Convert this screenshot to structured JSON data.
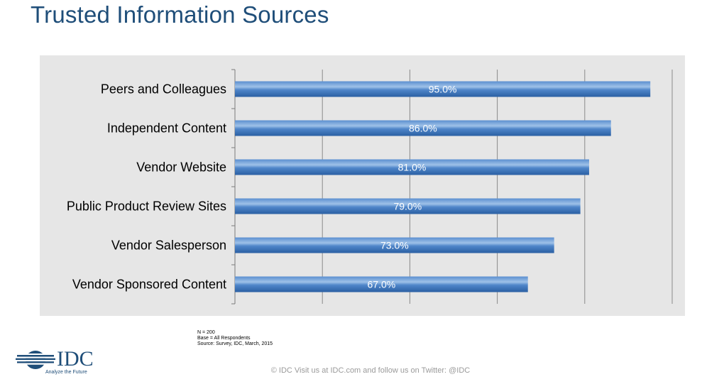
{
  "page": {
    "title": "Trusted Information Sources",
    "notes": {
      "n": "N = 200",
      "base": "Base = All Respondents",
      "source": "Source: Survey, IDC, March, 2015"
    },
    "logo": {
      "text": "IDC",
      "tagline": "Analyze the Future"
    },
    "footer": "© IDC   Visit us at IDC.com and follow us on Twitter: @IDC"
  },
  "colors": {
    "bar_dark": "#2f6db0",
    "bar_light": "#9ec1e8",
    "grid": "#8a8a8a",
    "plot_bg": "#e6e6e6",
    "title": "#1f4e79"
  },
  "chart_data": {
    "type": "bar",
    "orientation": "horizontal",
    "title": "Trusted Information Sources",
    "categories": [
      "Peers and Colleagues",
      "Independent Content",
      "Vendor Website",
      "Public Product Review Sites",
      "Vendor Salesperson",
      "Vendor Sponsored Content"
    ],
    "values": [
      95.0,
      86.0,
      81.0,
      79.0,
      73.0,
      67.0
    ],
    "value_labels": [
      "95.0%",
      "86.0%",
      "81.0%",
      "79.0%",
      "73.0%",
      "67.0%"
    ],
    "xlim": [
      0,
      100
    ],
    "grid_step": 20,
    "grid": true,
    "xlabel": "",
    "ylabel": ""
  }
}
